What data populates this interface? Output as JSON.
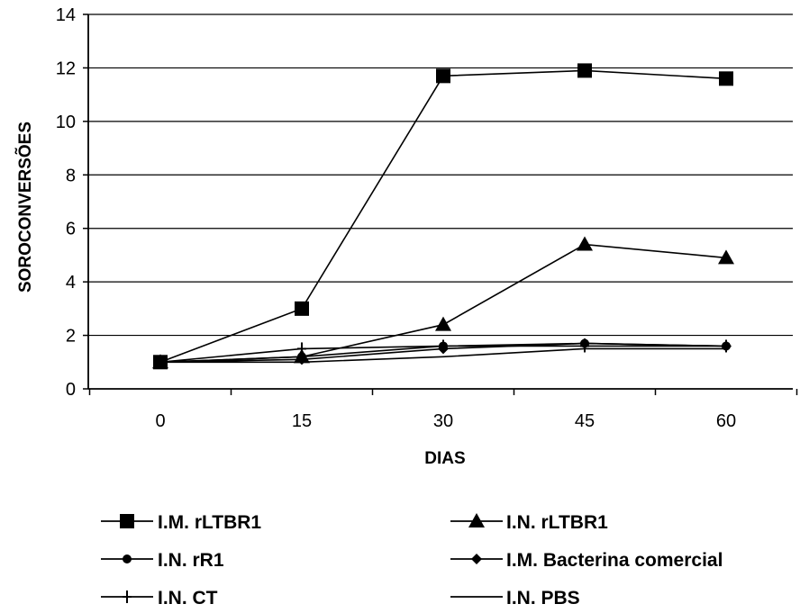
{
  "chart_data": {
    "type": "line",
    "title": "",
    "xlabel": "DIAS",
    "ylabel": "SOROCONVERSÕES",
    "x": [
      0,
      15,
      30,
      45,
      60
    ],
    "xticks": [
      "0",
      "15",
      "30",
      "45",
      "60"
    ],
    "yticks": [
      "0",
      "2",
      "4",
      "6",
      "8",
      "10",
      "12",
      "14"
    ],
    "ylim": [
      0,
      14
    ],
    "grid": "horizontal",
    "legend_position": "bottom",
    "series": [
      {
        "name": "I.M. rLTBR1",
        "marker": "square",
        "values": [
          1.0,
          3.0,
          11.7,
          11.9,
          11.6
        ]
      },
      {
        "name": "I.N. rLTBR1",
        "marker": "triangle",
        "values": [
          1.0,
          1.2,
          2.4,
          5.4,
          4.9
        ]
      },
      {
        "name": "I.N. rR1",
        "marker": "circle",
        "values": [
          1.0,
          1.2,
          1.6,
          1.7,
          1.6
        ]
      },
      {
        "name": "I.M. Bacterina comercial",
        "marker": "diamond",
        "values": [
          1.0,
          1.1,
          1.5,
          1.7,
          1.6
        ]
      },
      {
        "name": "I.N. CT",
        "marker": "plus",
        "values": [
          1.0,
          1.5,
          1.6,
          1.6,
          1.6
        ]
      },
      {
        "name": "I.N. PBS",
        "marker": "none",
        "values": [
          1.0,
          1.0,
          1.2,
          1.5,
          1.5
        ]
      }
    ],
    "colors": {
      "line": "#000000",
      "background": "#ffffff"
    }
  }
}
